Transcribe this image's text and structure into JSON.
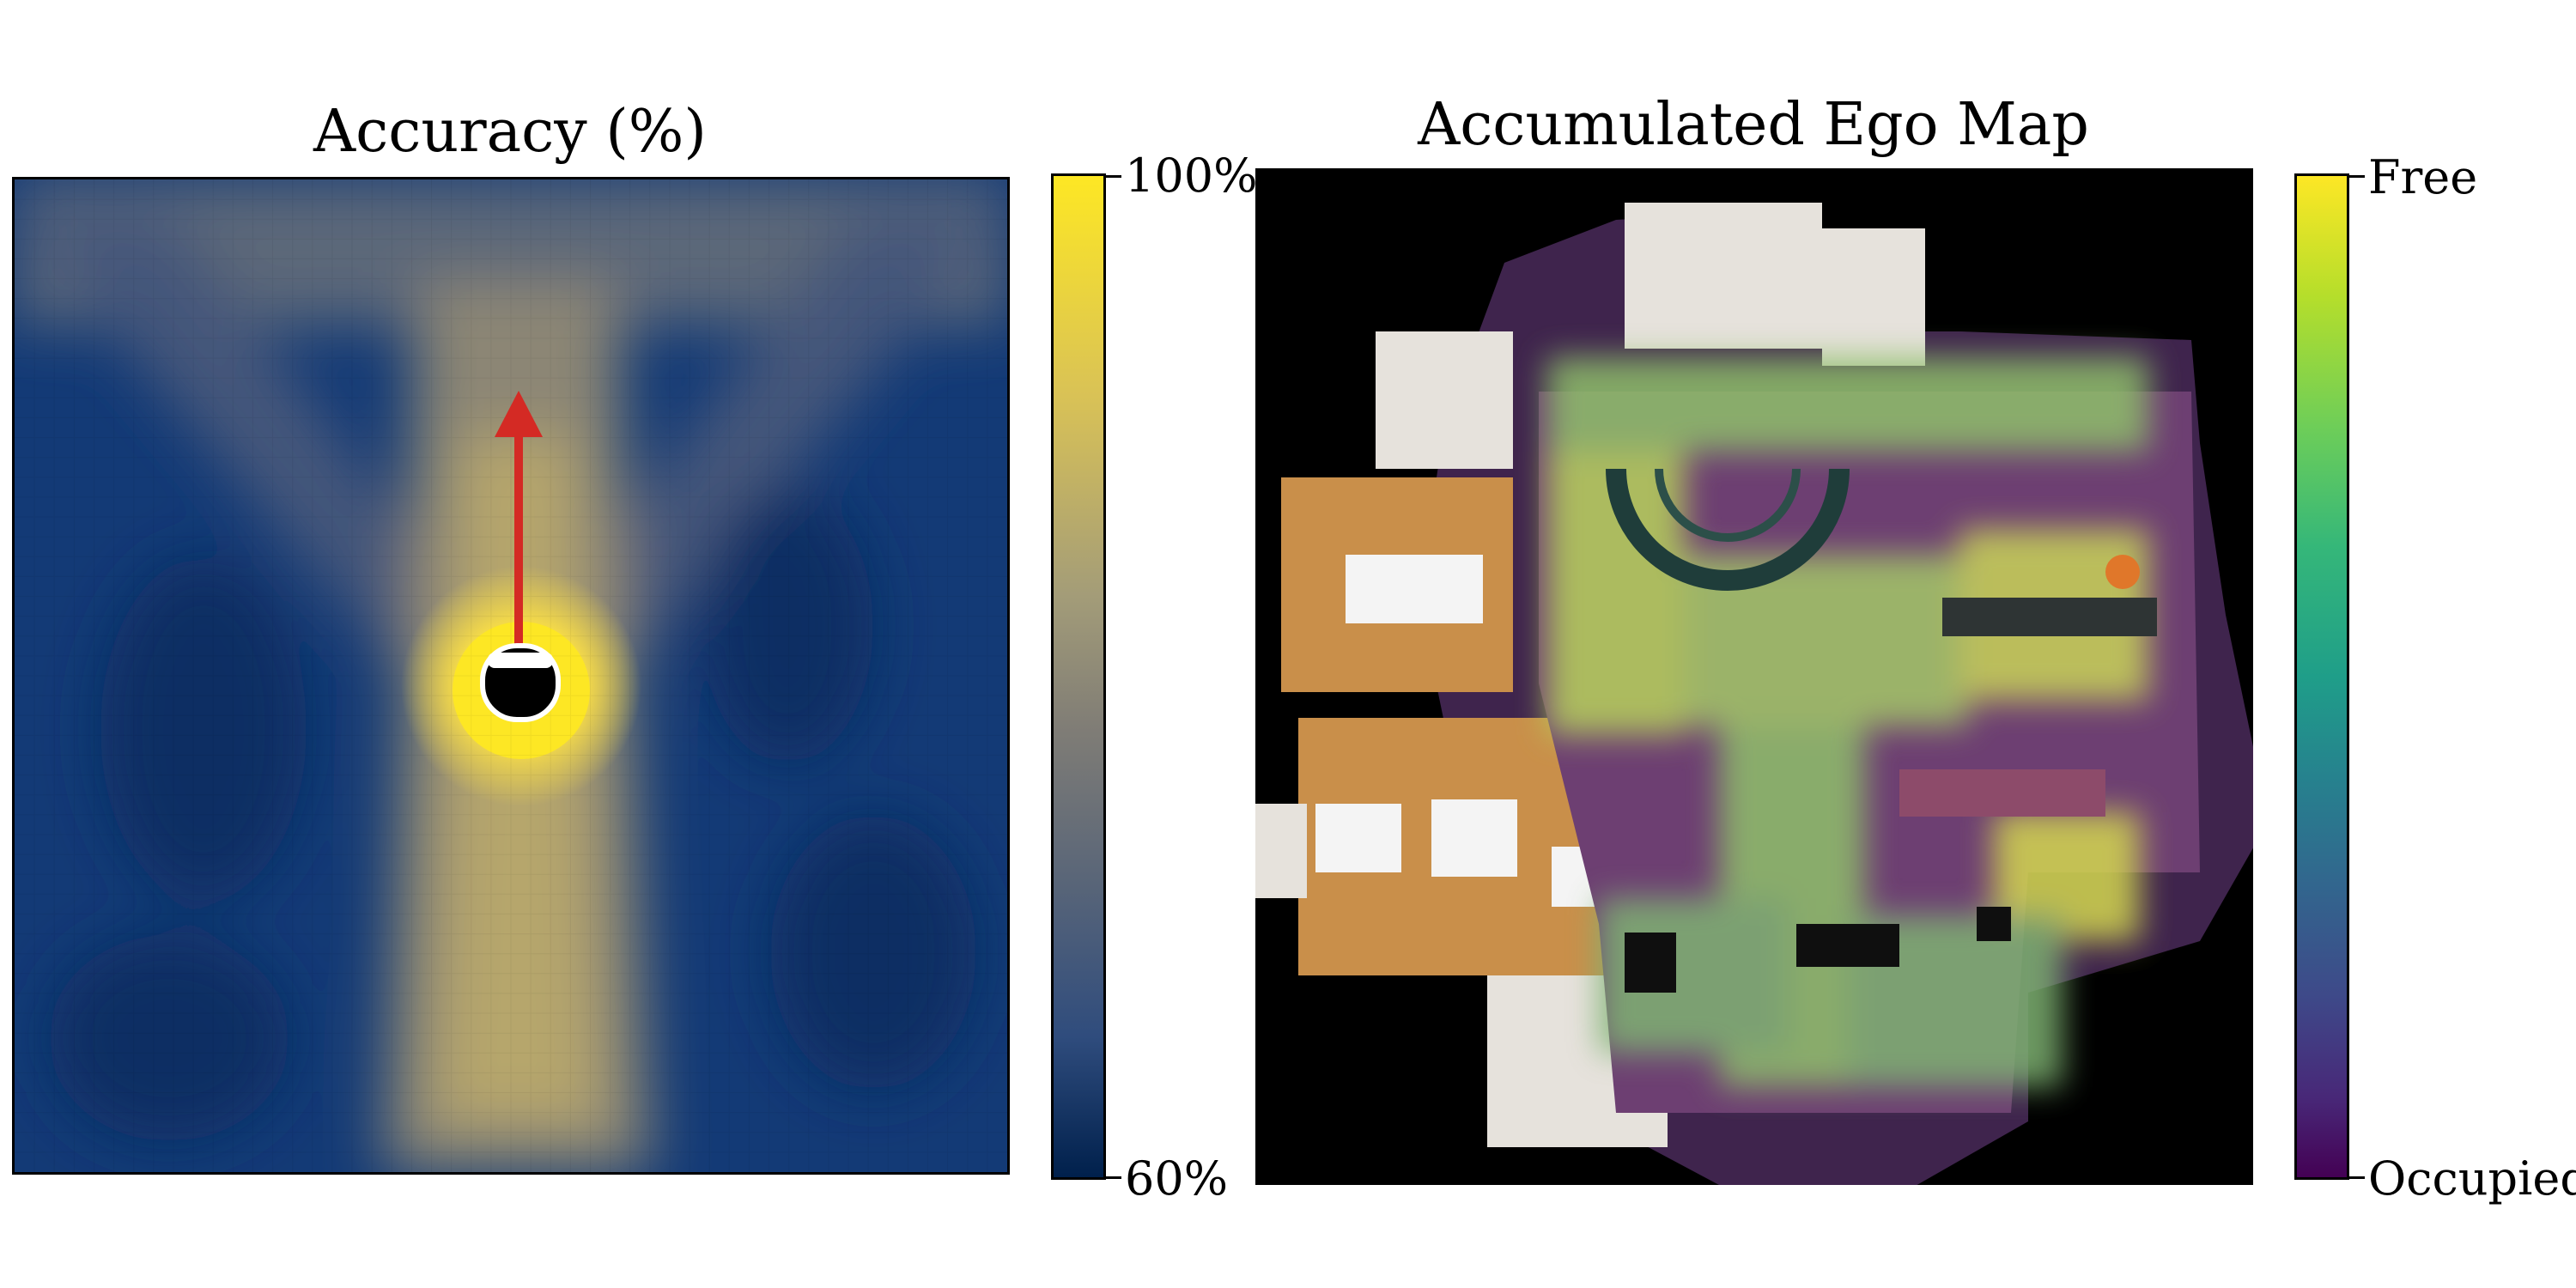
{
  "left_panel": {
    "title": "Accuracy (%)",
    "colorbar": {
      "max_label": "100%",
      "min_label": "60%",
      "colors": [
        "#00204c",
        "#807d76",
        "#fde724"
      ]
    }
  },
  "right_panel": {
    "title": "Accumulated Ego Map",
    "colorbar": {
      "max_label": "Free",
      "min_label": "Occupied",
      "colors": [
        "#440154",
        "#21918c",
        "#fde725"
      ]
    }
  },
  "icons": [
    "agent-icon",
    "heading-arrow-icon"
  ],
  "colors": {
    "arrow": "#d42a24",
    "floor_wood": "#c98f4a",
    "floor_tile": "#e6e2dc",
    "background": "#000000"
  }
}
